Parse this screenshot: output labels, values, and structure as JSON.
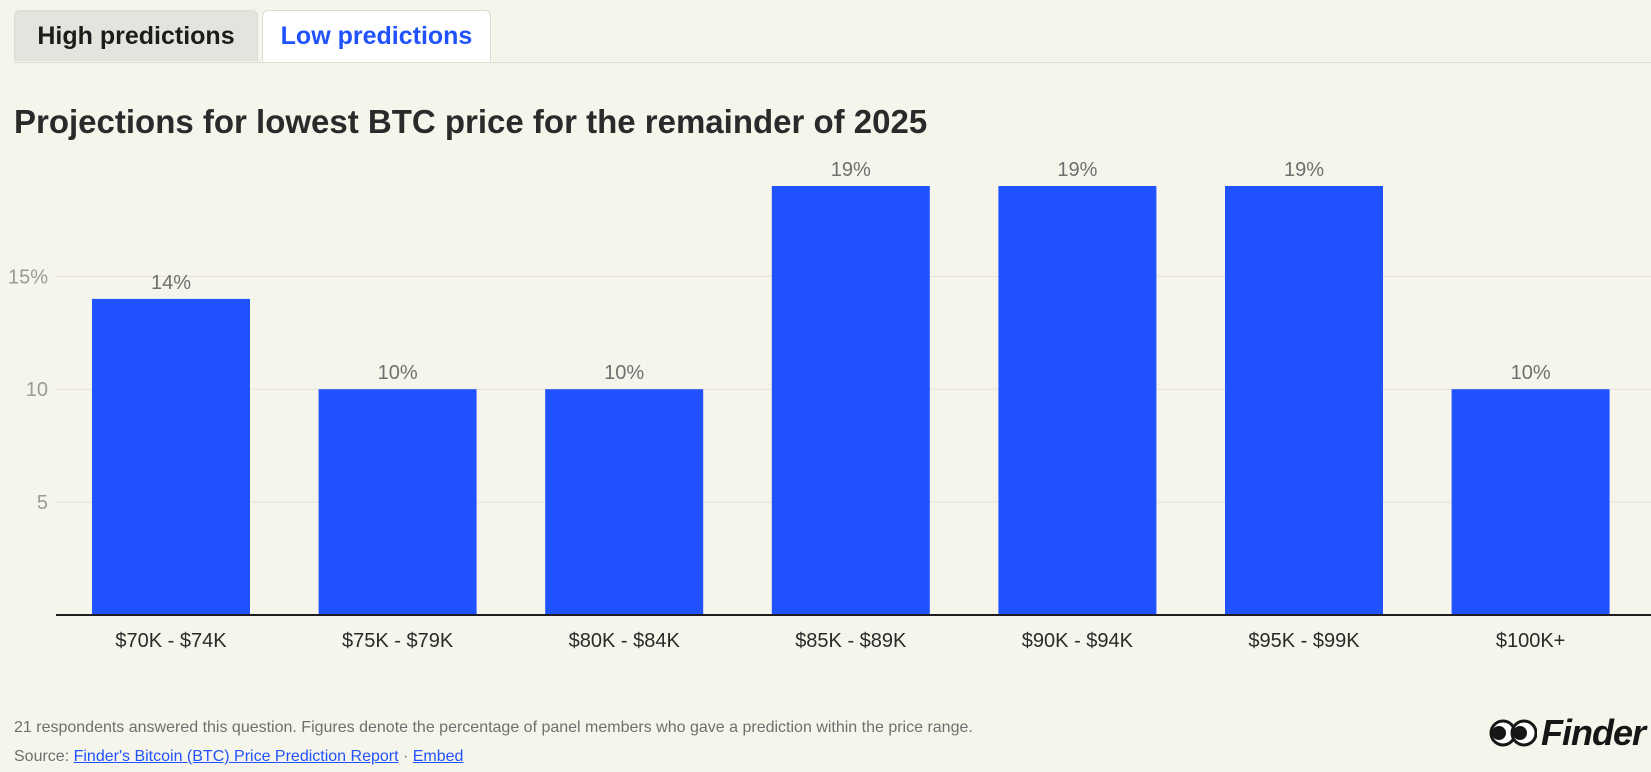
{
  "tabs": {
    "high_label": "High predictions",
    "low_label": "Low predictions",
    "active": "low"
  },
  "title": "Projections for lowest BTC price for the remainder of 2025",
  "chart_data": {
    "type": "bar",
    "categories": [
      "$70K - $74K",
      "$75K - $79K",
      "$80K - $84K",
      "$85K - $89K",
      "$90K - $94K",
      "$95K - $99K",
      "$100K+"
    ],
    "values": [
      14,
      10,
      10,
      19,
      19,
      19,
      10
    ],
    "data_labels": [
      "14%",
      "10%",
      "10%",
      "19%",
      "19%",
      "19%",
      "10%"
    ],
    "y_ticks": [
      {
        "value": 5,
        "label": "5"
      },
      {
        "value": 10,
        "label": "10"
      },
      {
        "value": 15,
        "label": "15%"
      }
    ],
    "ylim": [
      0,
      19
    ],
    "grid": true,
    "bar_color": "#2152ff"
  },
  "footnote": "21 respondents answered this question. Figures denote the percentage of panel members who gave a prediction within the price range.",
  "source": {
    "prefix": "Source: ",
    "link_label": "Finder's Bitcoin (BTC) Price Prediction Report",
    "separator": " · ",
    "embed_label": "Embed"
  },
  "logo": {
    "text": "Finder"
  },
  "colors": {
    "background": "#f6f5ec",
    "accent": "#2152ff",
    "axis": "#1d1d1f",
    "muted_text": "#6f6f6f"
  }
}
